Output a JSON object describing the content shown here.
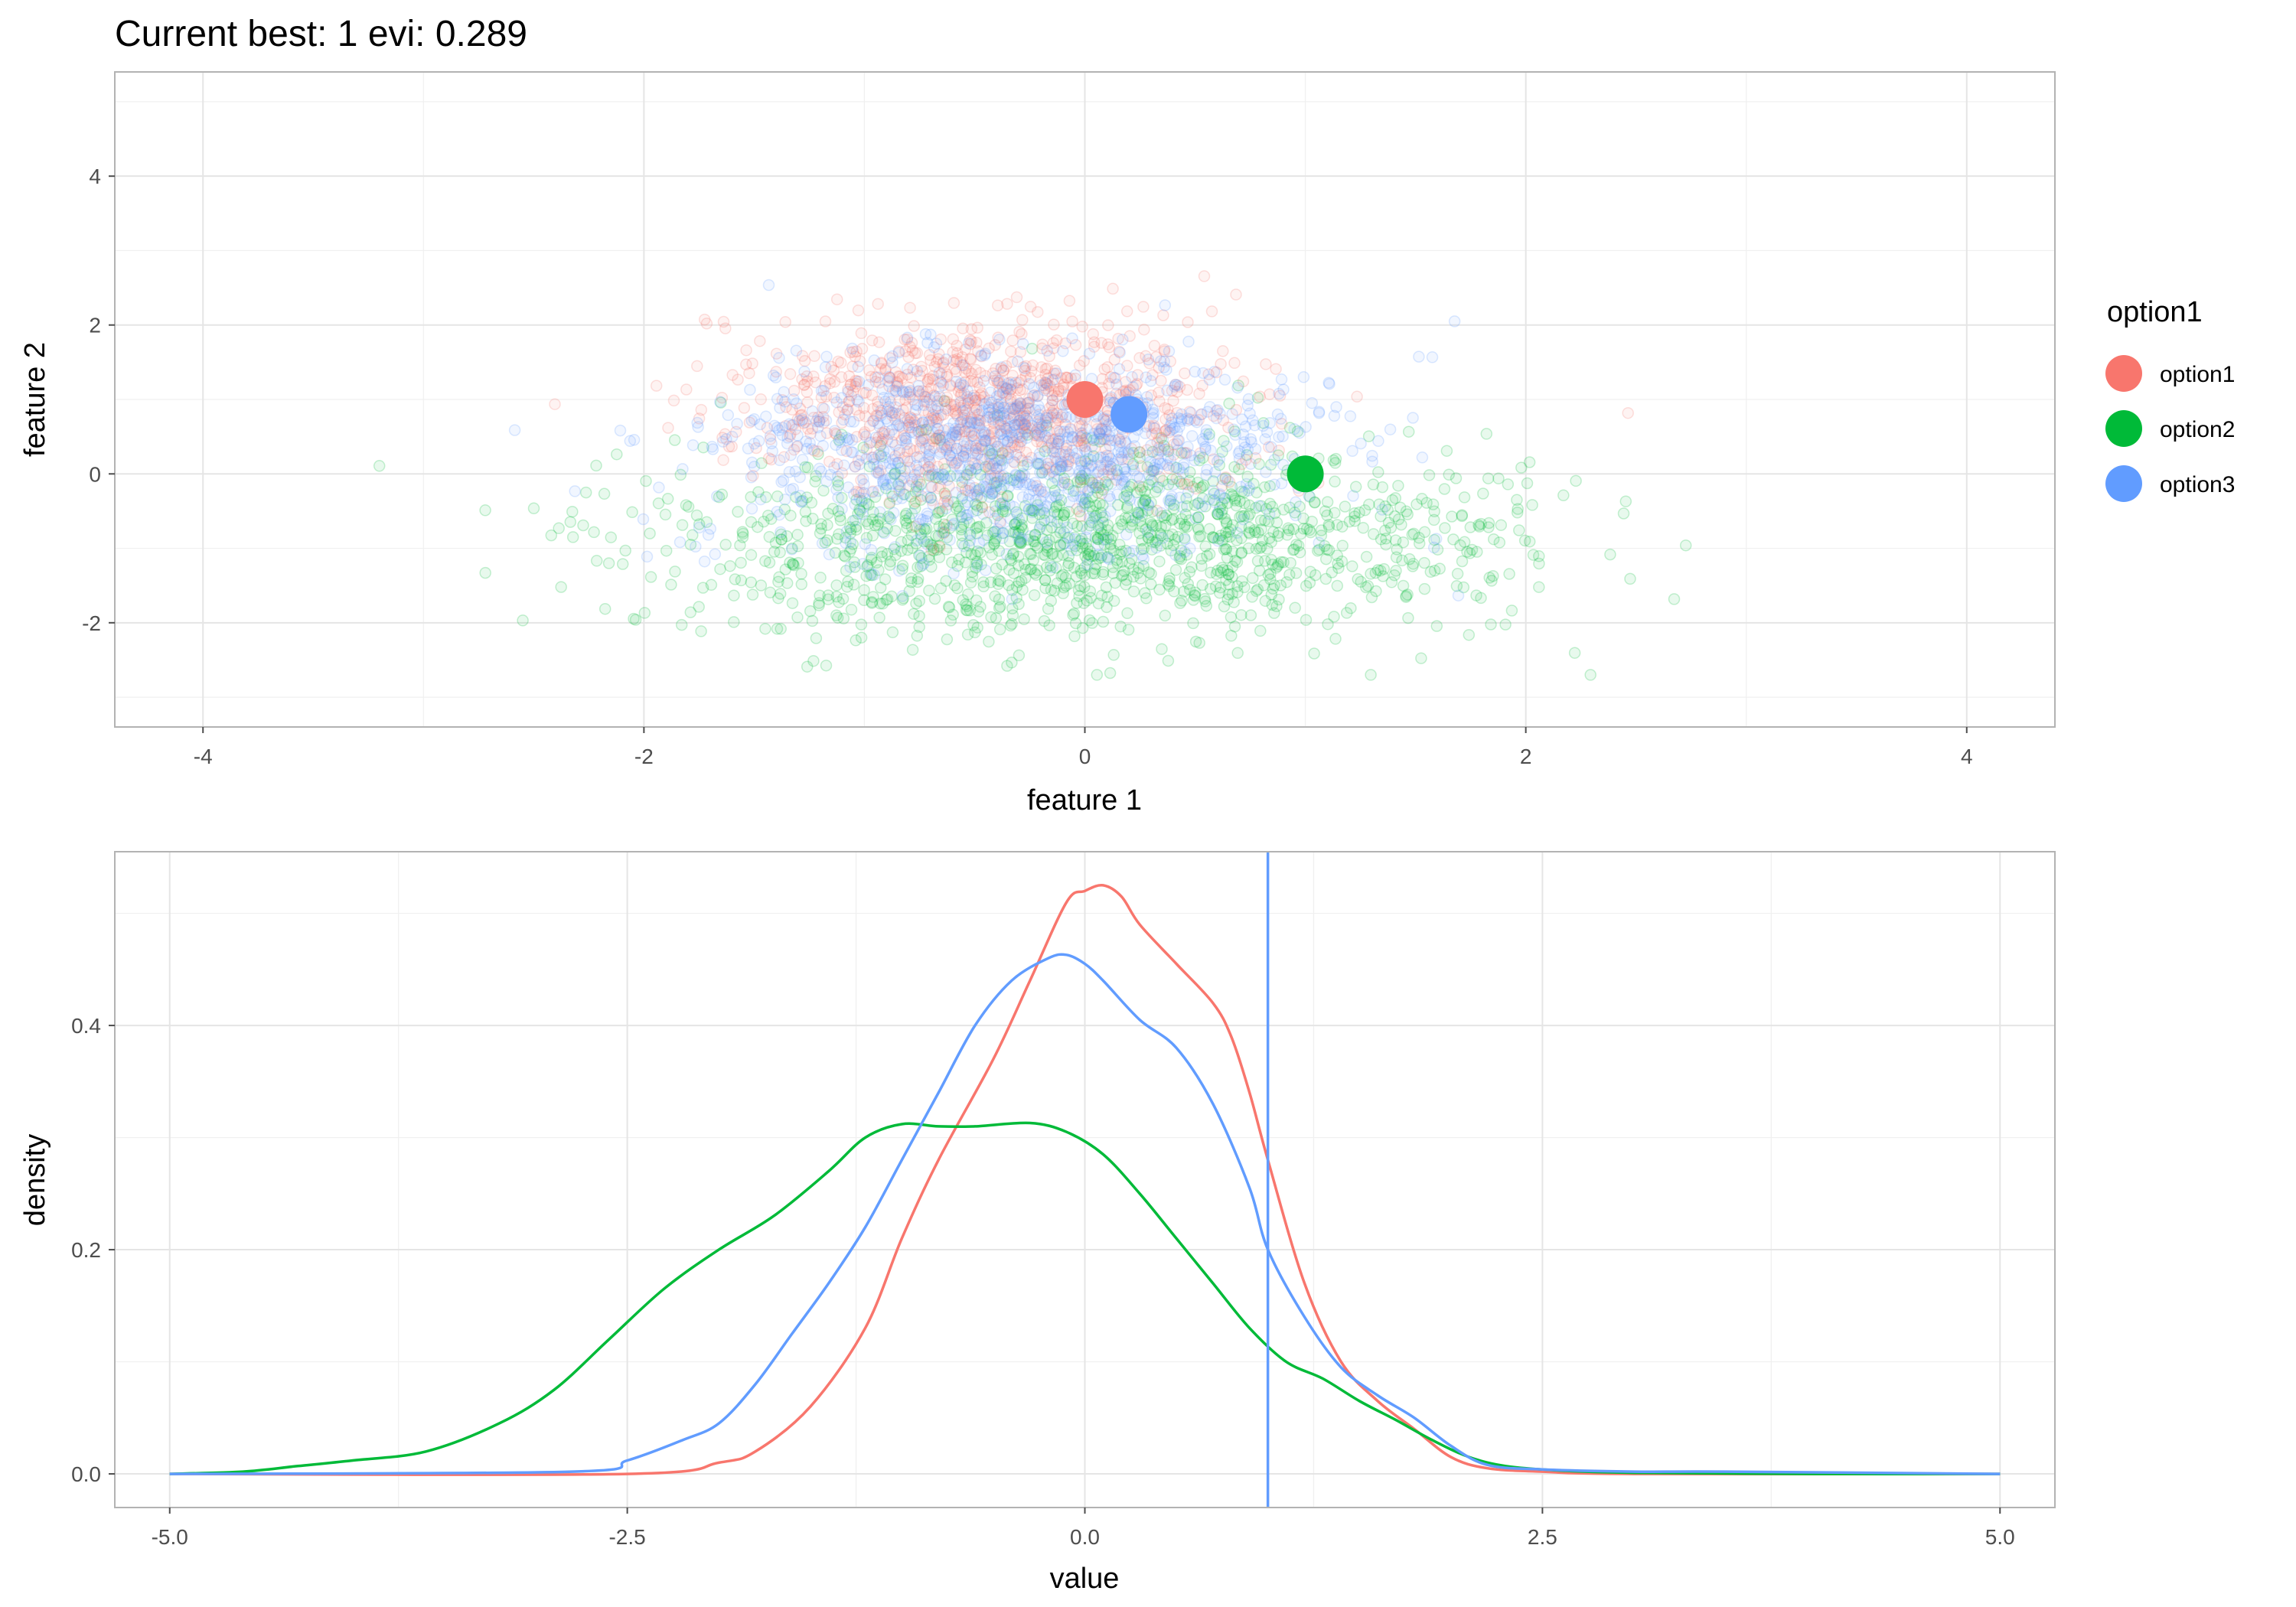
{
  "chart_data": [
    {
      "type": "scatter",
      "title": "Current best: 1 evi: 0.289",
      "xlabel": "feature 1",
      "ylabel": "feature 2",
      "xlim": [
        -4.4,
        4.4
      ],
      "ylim": [
        -3.4,
        5.4
      ],
      "x_ticks": [
        -4,
        -2,
        0,
        2,
        4
      ],
      "y_ticks": [
        -2,
        0,
        2,
        4
      ],
      "x_tick_labels": [
        "-4",
        "-2",
        "0",
        "2",
        "4"
      ],
      "y_tick_labels": [
        "-2",
        "0",
        "2",
        "4"
      ],
      "grid": true,
      "legend": {
        "title": "option1",
        "placement": "right",
        "entries": [
          "option1",
          "option2",
          "option3"
        ]
      },
      "series": [
        {
          "name": "option1",
          "color": "#F8766D",
          "highlight_point": {
            "x": 0.0,
            "y": 1.0
          },
          "cloud": {
            "x_mean": -0.45,
            "x_sd": 0.55,
            "y_mean": 0.9,
            "y_sd": 0.6,
            "n": 900
          }
        },
        {
          "name": "option2",
          "color": "#00BA38",
          "highlight_point": {
            "x": 1.0,
            "y": 0.0
          },
          "cloud": {
            "x_mean": 0.0,
            "x_sd": 1.0,
            "y_mean": -0.9,
            "y_sd": 0.65,
            "n": 1300
          }
        },
        {
          "name": "option3",
          "color": "#619CFF",
          "highlight_point": {
            "x": 0.2,
            "y": 0.8
          },
          "cloud": {
            "x_mean": -0.3,
            "x_sd": 0.65,
            "y_mean": 0.3,
            "y_sd": 0.65,
            "n": 1100
          }
        }
      ]
    },
    {
      "type": "line",
      "xlabel": "value",
      "ylabel": "density",
      "xlim": [
        -5.3,
        5.3
      ],
      "ylim": [
        -0.03,
        0.555
      ],
      "x_ticks": [
        -5.0,
        -2.5,
        0.0,
        2.5,
        5.0
      ],
      "y_ticks": [
        0.0,
        0.2,
        0.4
      ],
      "x_tick_labels": [
        "-5.0",
        "-2.5",
        "0.0",
        "2.5",
        "5.0"
      ],
      "y_tick_labels": [
        "0.0",
        "0.2",
        "0.4"
      ],
      "grid": true,
      "vline": {
        "x": 1.0,
        "color": "#619CFF"
      },
      "series": [
        {
          "color": "#F8766D",
          "x": [
            -5.0,
            -2.5,
            -2.0,
            -1.8,
            -1.5,
            -1.2,
            -1.0,
            -0.8,
            -0.5,
            -0.3,
            -0.1,
            0.0,
            0.1,
            0.2,
            0.3,
            0.5,
            0.7,
            0.8,
            0.9,
            1.0,
            1.2,
            1.4,
            1.6,
            1.8,
            2.0,
            2.2,
            2.5,
            3.0,
            5.0
          ],
          "y": [
            0.0,
            0.0,
            0.01,
            0.02,
            0.06,
            0.13,
            0.21,
            0.28,
            0.37,
            0.44,
            0.51,
            0.52,
            0.525,
            0.515,
            0.49,
            0.455,
            0.42,
            0.39,
            0.34,
            0.28,
            0.17,
            0.1,
            0.065,
            0.04,
            0.015,
            0.005,
            0.002,
            0.0,
            0.0
          ]
        },
        {
          "color": "#00BA38",
          "x": [
            -5.0,
            -4.6,
            -4.3,
            -4.0,
            -3.6,
            -3.2,
            -2.9,
            -2.6,
            -2.3,
            -2.0,
            -1.7,
            -1.4,
            -1.2,
            -1.0,
            -0.8,
            -0.6,
            -0.3,
            -0.1,
            0.1,
            0.3,
            0.5,
            0.7,
            0.9,
            1.1,
            1.3,
            1.5,
            1.7,
            1.9,
            2.1,
            2.3,
            2.6,
            3.0,
            4.0,
            5.0
          ],
          "y": [
            0.0,
            0.002,
            0.007,
            0.012,
            0.02,
            0.045,
            0.075,
            0.12,
            0.165,
            0.2,
            0.23,
            0.27,
            0.3,
            0.312,
            0.31,
            0.31,
            0.313,
            0.305,
            0.285,
            0.25,
            0.21,
            0.17,
            0.13,
            0.1,
            0.085,
            0.065,
            0.048,
            0.03,
            0.015,
            0.007,
            0.003,
            0.001,
            0.0,
            0.0
          ]
        },
        {
          "color": "#619CFF",
          "x": [
            -5.0,
            -2.8,
            -2.5,
            -2.2,
            -2.0,
            -1.8,
            -1.6,
            -1.4,
            -1.2,
            -1.0,
            -0.8,
            -0.6,
            -0.4,
            -0.2,
            -0.1,
            0.0,
            0.1,
            0.3,
            0.5,
            0.7,
            0.9,
            1.0,
            1.2,
            1.4,
            1.6,
            1.8,
            2.0,
            2.2,
            2.5,
            3.0,
            3.5,
            5.0
          ],
          "y": [
            0.0,
            0.002,
            0.012,
            0.03,
            0.045,
            0.08,
            0.125,
            0.17,
            0.22,
            0.28,
            0.34,
            0.4,
            0.44,
            0.46,
            0.463,
            0.455,
            0.44,
            0.405,
            0.38,
            0.33,
            0.255,
            0.2,
            0.14,
            0.095,
            0.07,
            0.05,
            0.025,
            0.008,
            0.004,
            0.002,
            0.002,
            0.0
          ]
        }
      ]
    }
  ]
}
